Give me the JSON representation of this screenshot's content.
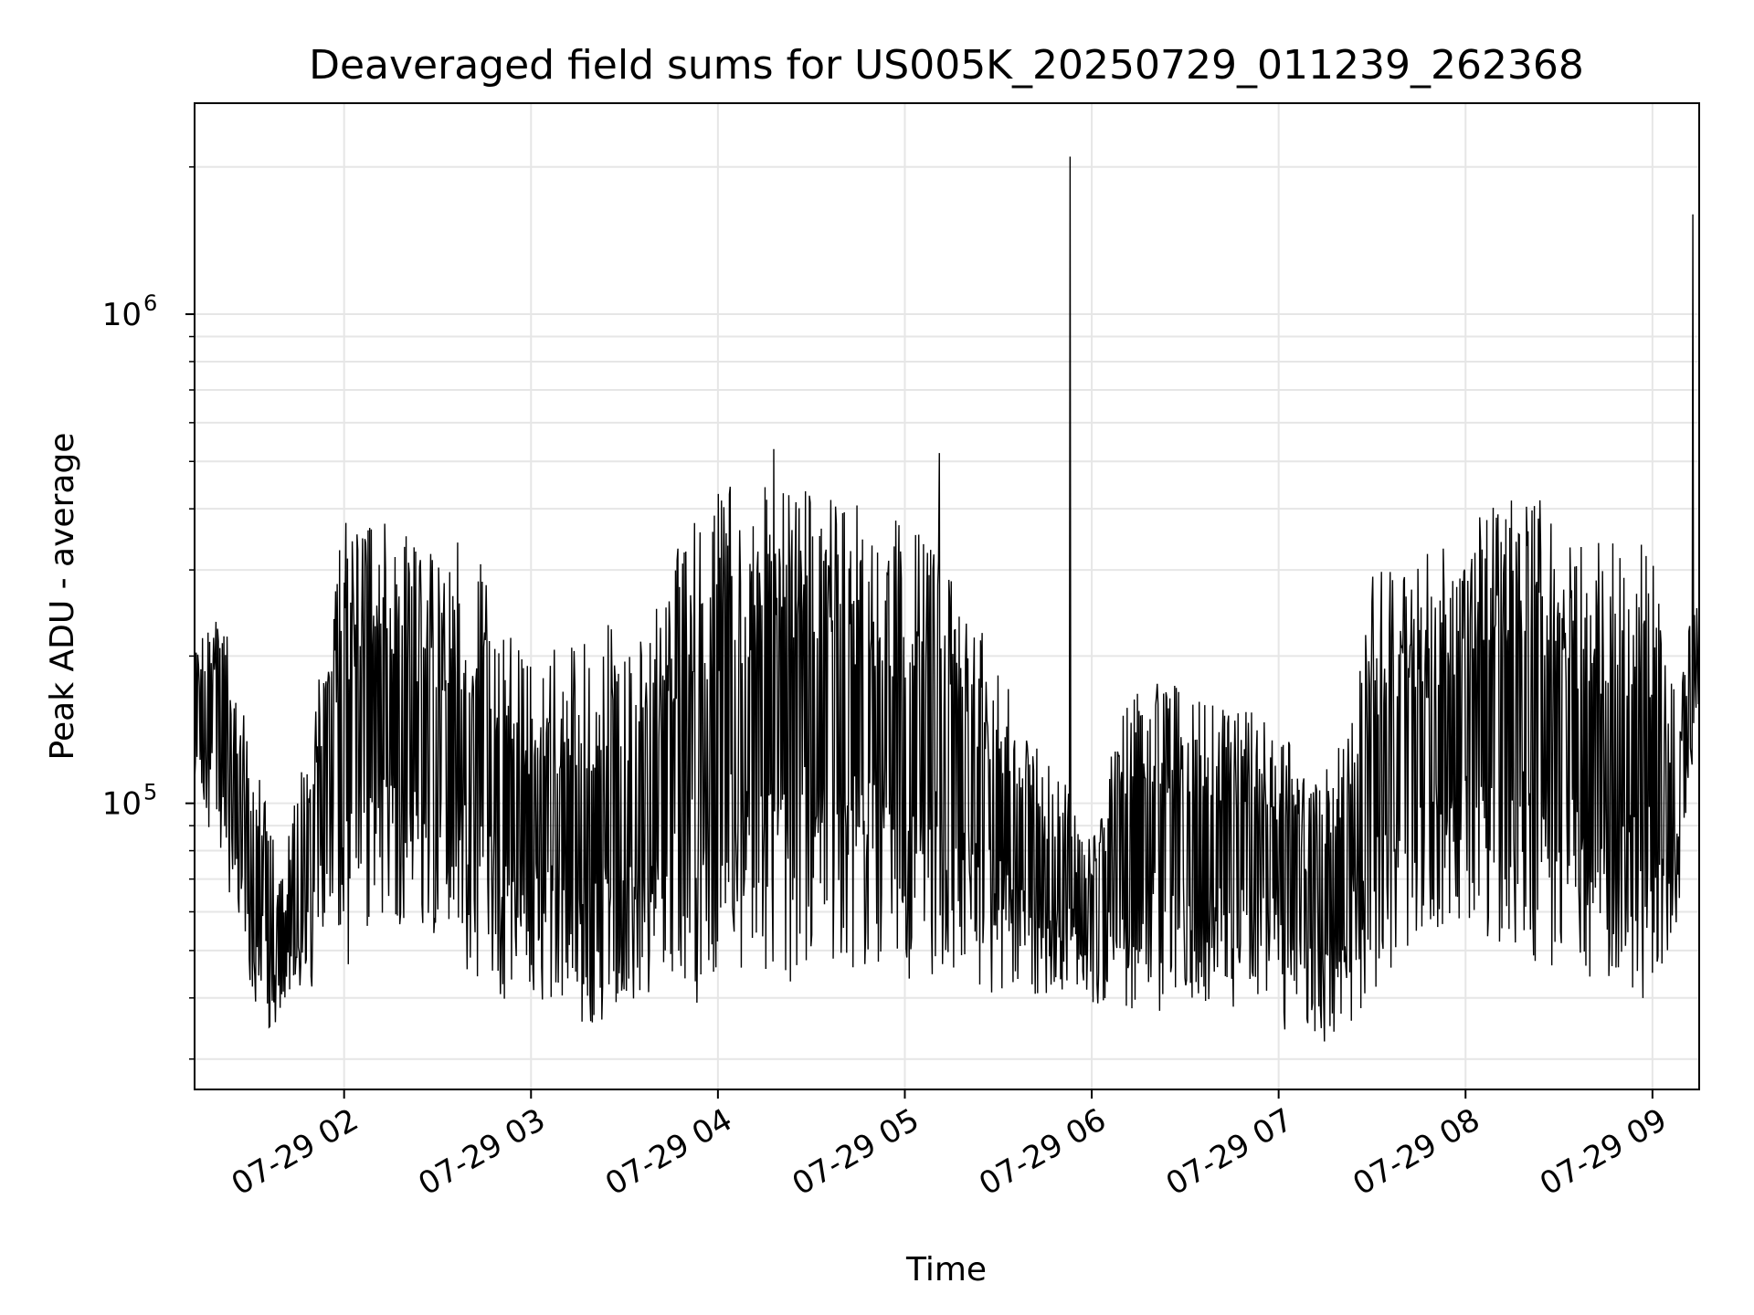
{
  "chart_data": {
    "type": "line",
    "title": "Deaveraged field sums for US005K_20250729_011239_262368",
    "xlabel": "Time",
    "ylabel": "Peak ADU - average",
    "yscale": "log",
    "xlim": [
      "2025-07-29 01:12",
      "2025-07-29 09:15"
    ],
    "ylim": [
      26000,
      2700000
    ],
    "xticks": [
      "07-29 02",
      "07-29 03",
      "07-29 04",
      "07-29 05",
      "07-29 06",
      "07-29 07",
      "07-29 08",
      "07-29 09"
    ],
    "yticks": [
      {
        "base": "10",
        "exp": "5",
        "value": 100000
      },
      {
        "base": "10",
        "exp": "6",
        "value": 1000000
      }
    ],
    "grid": true,
    "line_color": "#000000",
    "grid_color": "#e6e6e6",
    "series": [
      {
        "x": [
          "2025-07-29 01:12",
          "2025-07-29 01:20",
          "2025-07-29 01:30",
          "2025-07-29 01:40",
          "2025-07-29 01:50",
          "2025-07-29 02:00",
          "2025-07-29 02:10",
          "2025-07-29 02:20",
          "2025-07-29 02:30",
          "2025-07-29 02:40",
          "2025-07-29 02:50",
          "2025-07-29 03:00",
          "2025-07-29 03:10",
          "2025-07-29 03:20",
          "2025-07-29 03:30",
          "2025-07-29 03:40",
          "2025-07-29 03:50",
          "2025-07-29 04:00",
          "2025-07-29 04:10",
          "2025-07-29 04:20",
          "2025-07-29 04:30",
          "2025-07-29 04:40",
          "2025-07-29 04:50",
          "2025-07-29 05:00",
          "2025-07-29 05:10",
          "2025-07-29 05:20",
          "2025-07-29 05:30",
          "2025-07-29 05:40",
          "2025-07-29 05:50",
          "2025-07-29 06:00",
          "2025-07-29 06:10",
          "2025-07-29 06:20",
          "2025-07-29 06:30",
          "2025-07-29 06:40",
          "2025-07-29 06:50",
          "2025-07-29 07:00",
          "2025-07-29 07:10",
          "2025-07-29 07:20",
          "2025-07-29 07:30",
          "2025-07-29 07:40",
          "2025-07-29 07:50",
          "2025-07-29 08:00",
          "2025-07-29 08:10",
          "2025-07-29 08:20",
          "2025-07-29 08:30",
          "2025-07-29 08:40",
          "2025-07-29 08:50",
          "2025-07-29 09:00",
          "2025-07-29 09:08",
          "2025-07-29 09:15"
        ],
        "upper": [
          200000,
          250000,
          130000,
          70000,
          150000,
          350000,
          360000,
          330000,
          310000,
          320000,
          230000,
          180000,
          200000,
          210000,
          220000,
          250000,
          330000,
          400000,
          420000,
          430000,
          420000,
          400000,
          370000,
          350000,
          300000,
          230000,
          190000,
          130000,
          110000,
          80000,
          150000,
          170000,
          160000,
          150000,
          150000,
          140000,
          100000,
          130000,
          270000,
          290000,
          300000,
          340000,
          380000,
          400000,
          360000,
          330000,
          320000,
          300000,
          150000,
          330000
        ],
        "lower": [
          110000,
          80000,
          40000,
          36000,
          45000,
          50000,
          55000,
          60000,
          55000,
          48000,
          42000,
          42000,
          40000,
          38000,
          40000,
          40000,
          42000,
          44000,
          45000,
          46000,
          47000,
          46000,
          48000,
          48000,
          46000,
          44000,
          42000,
          43000,
          44000,
          42000,
          42000,
          41000,
          41000,
          40000,
          40000,
          36000,
          34000,
          34000,
          42000,
          50000,
          55000,
          55000,
          54000,
          52000,
          50000,
          46000,
          44000,
          44000,
          60000,
          180000
        ],
        "spikes": [
          {
            "x": "2025-07-29 05:53",
            "y": 2100000
          },
          {
            "x": "2025-07-29 09:13",
            "y": 1600000
          },
          {
            "x": "2025-07-29 04:18",
            "y": 530000
          },
          {
            "x": "2025-07-29 05:11",
            "y": 520000
          }
        ]
      }
    ]
  }
}
